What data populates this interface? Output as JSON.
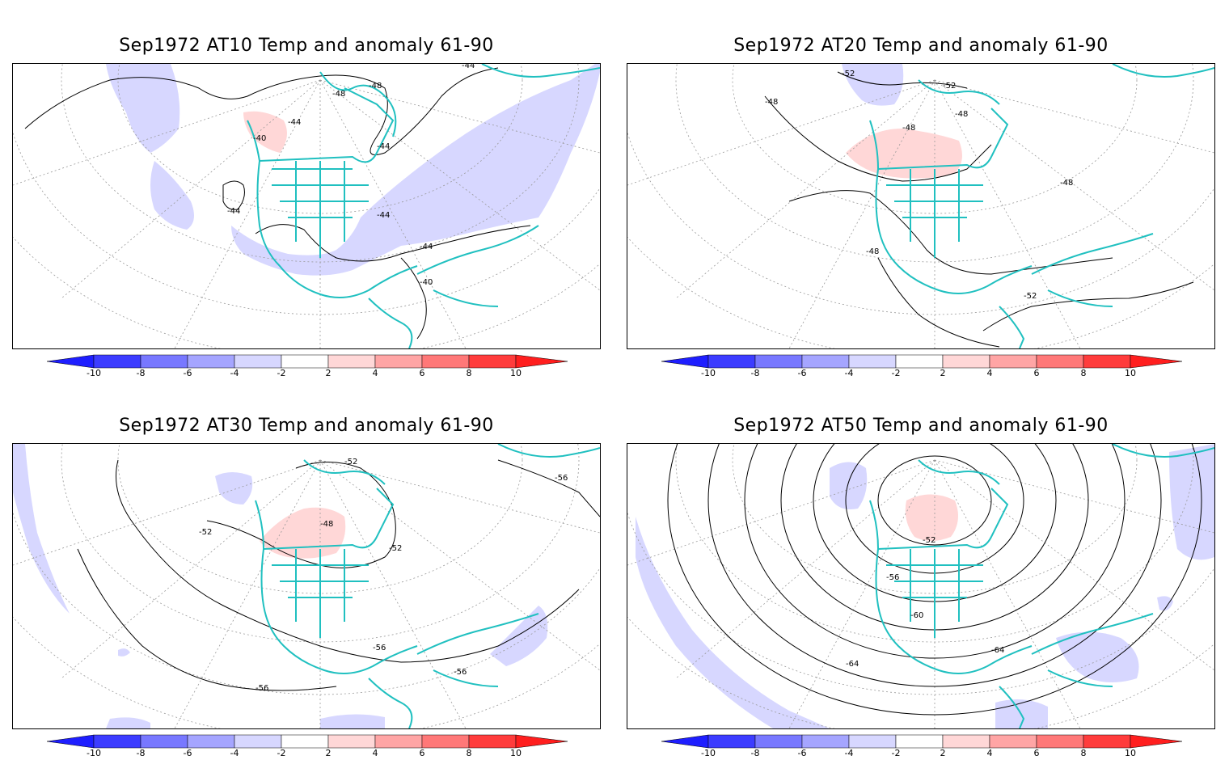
{
  "panels": [
    {
      "title": "Sep1972 AT10 Temp and anomaly 61-90",
      "contour_labels": [
        "-44",
        "-48",
        "-48",
        "-44",
        "-44",
        "-40",
        "-44",
        "-44",
        "-44",
        "-40"
      ]
    },
    {
      "title": "Sep1972 AT20 Temp and anomaly 61-90",
      "contour_labels": [
        "-52",
        "-52",
        "-48",
        "-48",
        "-48",
        "-48",
        "-48",
        "-52"
      ]
    },
    {
      "title": "Sep1972 AT30 Temp and anomaly 61-90",
      "contour_labels": [
        "-52",
        "-56",
        "-52",
        "-48",
        "-52",
        "-56",
        "-56",
        "-56"
      ]
    },
    {
      "title": "Sep1972 AT50 Temp and anomaly 61-90",
      "contour_labels": [
        "-52",
        "-56",
        "-60",
        "-64",
        "-64"
      ]
    }
  ],
  "colorbar": {
    "ticks": [
      "-10",
      "-8",
      "-6",
      "-4",
      "-2",
      "2",
      "4",
      "6",
      "8",
      "10"
    ],
    "colors": [
      "#1e1eff",
      "#3c3cff",
      "#7878ff",
      "#a5a5ff",
      "#d7d7ff",
      "#ffffff",
      "#ffd7d7",
      "#ffa5a5",
      "#ff7878",
      "#ff3c3c",
      "#ff1e1e"
    ]
  },
  "styles": {
    "coastline_color": "#20c0c0",
    "contour_color": "#000000",
    "grid_color": "#999999"
  }
}
